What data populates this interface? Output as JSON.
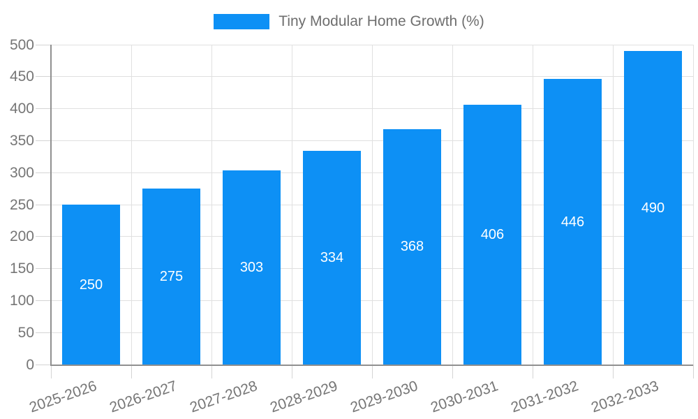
{
  "legend": {
    "label": "Tiny Modular Home Growth (%)"
  },
  "chart_data": {
    "type": "bar",
    "title": "",
    "xlabel": "",
    "ylabel": "",
    "categories": [
      "2025-2026",
      "2026-2027",
      "2027-2028",
      "2028-2029",
      "2029-2030",
      "2030-2031",
      "2031-2032",
      "2032-2033"
    ],
    "values": [
      250,
      275,
      303,
      334,
      368,
      406,
      446,
      490
    ],
    "series_name": "Tiny Modular Home Growth (%)",
    "ylim": [
      0,
      500
    ],
    "ytick_step": 50,
    "grid": true,
    "legend_position": "top-center",
    "value_labels": "inside-center",
    "colors": {
      "bar": "#0d90f5",
      "value_label": "#ffffff",
      "axis_label": "#757575",
      "axis_line": "#909090",
      "gridline": "#e0e0e0",
      "tick": "#d4d4d4",
      "legend_text": "#6e6e6e"
    }
  }
}
